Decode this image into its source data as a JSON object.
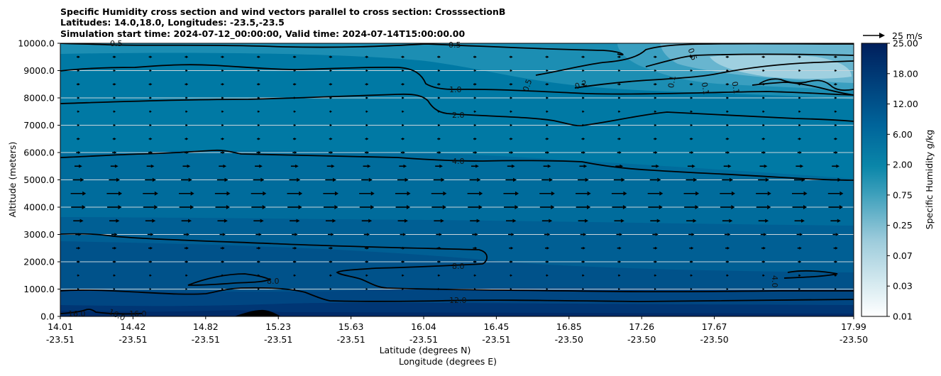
{
  "chart_data": {
    "type": "contourf",
    "title_lines": [
      "Specific Humidity cross section and wind vectors parallel to cross section: CrosssectionB",
      "Latitudes: 14.0,18.0, Longitudes: -23.5,-23.5",
      "Simulation start time: 2024-07-12_00:00:00, Valid time: 2024-07-14T15:00:00.00"
    ],
    "ylabel": "Altitude (meters)",
    "xlabel_lat": "Latitude (degrees N)",
    "xlabel_lon": "Longitude (degrees E)",
    "ylim": [
      0,
      10000
    ],
    "y_ticks": [
      "0.0",
      "1000.0",
      "2000.0",
      "3000.0",
      "4000.0",
      "5000.0",
      "6000.0",
      "7000.0",
      "8000.0",
      "9000.0",
      "10000.0"
    ],
    "x_tick_lats": [
      "14.01",
      "14.42",
      "14.82",
      "15.23",
      "15.63",
      "16.04",
      "16.45",
      "16.85",
      "17.26",
      "17.67",
      "17.99"
    ],
    "x_tick_lons": [
      "-23.51",
      "-23.51",
      "-23.51",
      "-23.51",
      "-23.51",
      "-23.51",
      "-23.51",
      "-23.50",
      "-23.50",
      "-23.50",
      "-23.50"
    ],
    "colorbar": {
      "label": "Specific Humidity g/kg",
      "tick_labels": [
        "0.01",
        "0.03",
        "0.07",
        "0.25",
        "0.75",
        "2.00",
        "6.00",
        "12.00",
        "18.00",
        "25.00"
      ],
      "colors": [
        "#f7fbfd",
        "#e4f1f5",
        "#d0e7ee",
        "#bcdde7",
        "#a7d2df",
        "#92c6d7",
        "#7cbbcf",
        "#64afc6",
        "#4aa3bd",
        "#2c97b4",
        "#0a8aab",
        "#0580a6",
        "#0077a2",
        "#006e9d",
        "#006597",
        "#005d91",
        "#00548a",
        "#004b84",
        "#00427c",
        "#003a74",
        "#00326c",
        "#002a64"
      ]
    },
    "vector_key": {
      "label": "25 m/s",
      "value": 25
    },
    "contour_labels": [
      "0.5",
      "0.5",
      "1.0",
      "2.0",
      "4.0",
      "8.0",
      "12.0",
      "16.0",
      "16.0",
      "16.0",
      "8.0",
      "4.0",
      "0.5",
      "0.2",
      "0.1",
      "0.1",
      "0.1",
      "0.5"
    ],
    "wind_rows": [
      {
        "z": 0,
        "speed": 0
      },
      {
        "z": 1000,
        "speed": 2
      },
      {
        "z": 1500,
        "speed": 3
      },
      {
        "z": 2000,
        "speed": 4
      },
      {
        "z": 2500,
        "speed": 5
      },
      {
        "z": 3000,
        "speed": 7
      },
      {
        "z": 3500,
        "speed": 12
      },
      {
        "z": 4000,
        "speed": 17
      },
      {
        "z": 4500,
        "speed": 18
      },
      {
        "z": 5000,
        "speed": 13
      },
      {
        "z": 5500,
        "speed": 9
      },
      {
        "z": 6000,
        "speed": 5
      },
      {
        "z": 6500,
        "speed": 4
      },
      {
        "z": 7000,
        "speed": 3
      },
      {
        "z": 7500,
        "speed": 3
      },
      {
        "z": 8000,
        "speed": 3
      },
      {
        "z": 8500,
        "speed": 4
      },
      {
        "z": 9000,
        "speed": 3
      },
      {
        "z": 9500,
        "speed": 4
      }
    ]
  }
}
